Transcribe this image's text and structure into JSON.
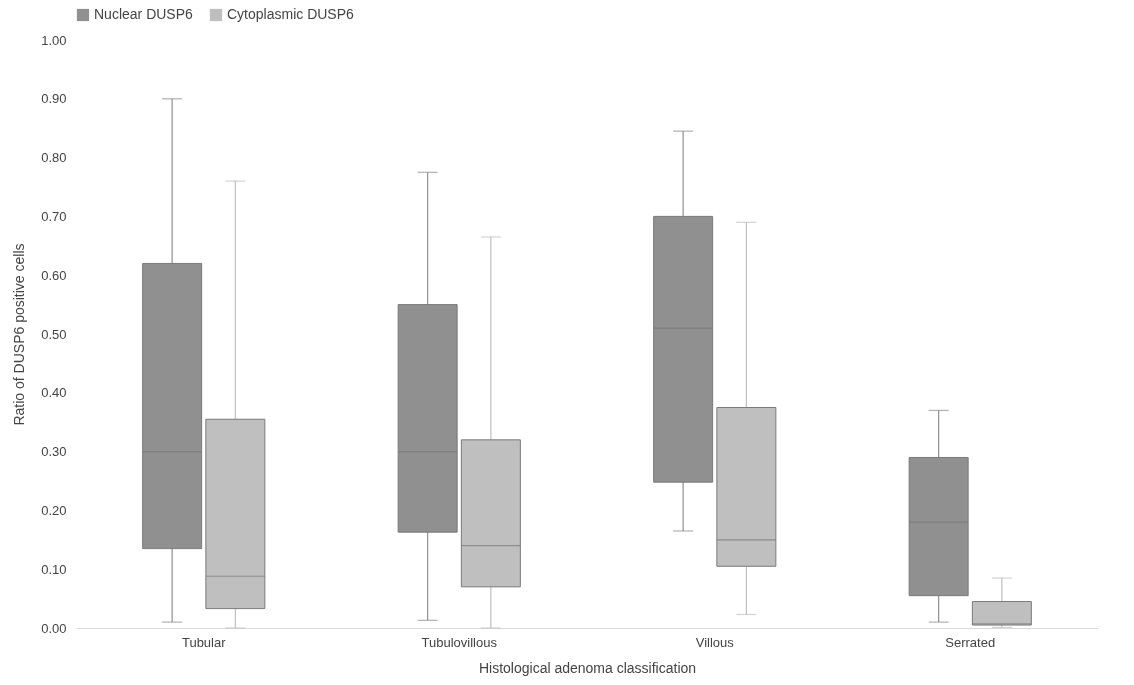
{
  "chart_data": {
    "type": "box",
    "xlabel": "Histological adenoma classification",
    "ylabel": "Ratio of DUSP6 positive cells",
    "categories": [
      "Tubular",
      "Tubulovillous",
      "Villous",
      "Serrated"
    ],
    "ylim": [
      0,
      1
    ],
    "yticks": [
      {
        "value": 0,
        "label": "0.00"
      },
      {
        "value": 0.1,
        "label": "0.10"
      },
      {
        "value": 0.2,
        "label": "0.20"
      },
      {
        "value": 0.3,
        "label": "0.30"
      },
      {
        "value": 0.4,
        "label": "0.40"
      },
      {
        "value": 0.5,
        "label": "0.50"
      },
      {
        "value": 0.6,
        "label": "0.60"
      },
      {
        "value": 0.7,
        "label": "0.70"
      },
      {
        "value": 0.8,
        "label": "0.80"
      },
      {
        "value": 0.9,
        "label": "0.90"
      },
      {
        "value": 1,
        "label": "1.00"
      }
    ],
    "grid": false,
    "legend": "top",
    "series": [
      {
        "name": "Nuclear DUSP6",
        "color": "#909090",
        "boxes": [
          {
            "low": 0.01,
            "q1": 0.135,
            "median": 0.3,
            "q3": 0.62,
            "high": 0.9
          },
          {
            "low": 0.013,
            "q1": 0.163,
            "median": 0.3,
            "q3": 0.55,
            "high": 0.775
          },
          {
            "low": 0.165,
            "q1": 0.248,
            "median": 0.51,
            "q3": 0.7,
            "high": 0.845
          },
          {
            "low": 0.01,
            "q1": 0.055,
            "median": 0.18,
            "q3": 0.29,
            "high": 0.37
          }
        ]
      },
      {
        "name": "Cytoplasmic DUSP6",
        "color": "#bfbfbf",
        "boxes": [
          {
            "low": 0,
            "q1": 0.033,
            "median": 0.088,
            "q3": 0.355,
            "high": 0.76
          },
          {
            "low": 0,
            "q1": 0.07,
            "median": 0.14,
            "q3": 0.32,
            "high": 0.665
          },
          {
            "low": 0.023,
            "q1": 0.105,
            "median": 0.15,
            "q3": 0.375,
            "high": 0.69
          },
          {
            "low": 0.001,
            "q1": 0.005,
            "median": 0.007,
            "q3": 0.045,
            "high": 0.085
          }
        ]
      }
    ]
  }
}
